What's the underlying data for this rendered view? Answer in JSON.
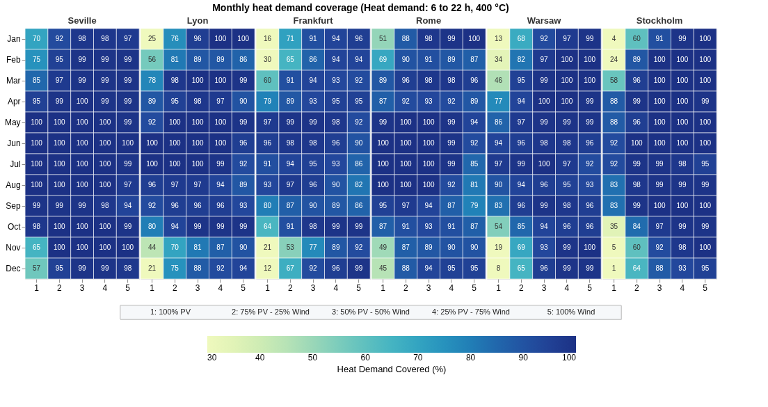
{
  "chart_data": [
    {
      "type": "other",
      "title": "Monthly heat demand coverage (Heat demand: 6 to 22 h, 400 °C)",
      "annotations": [
        "1: 100% PV",
        "2: 75% PV - 25% Wind",
        "3: 50% PV - 50% Wind",
        "4: 25% PV - 75% Wind",
        "5: 100% Wind"
      ]
    },
    {
      "type": "heatmap",
      "title": "Seville",
      "categories": [
        "1",
        "2",
        "3",
        "4",
        "5"
      ],
      "y_categories": [
        "Jan",
        "Feb",
        "Mar",
        "Apr",
        "May",
        "Jun",
        "Jul",
        "Aug",
        "Sep",
        "Oct",
        "Nov",
        "Dec"
      ],
      "data_labels": true,
      "clim": [
        30,
        100
      ],
      "cticks": [
        30,
        40,
        50,
        60,
        70,
        80,
        90,
        100
      ],
      "clabel": "Heat Demand Covered (%)",
      "cells": [
        [
          70,
          92,
          98,
          98,
          97
        ],
        [
          75,
          95,
          99,
          99,
          99
        ],
        [
          85,
          97,
          99,
          99,
          99
        ],
        [
          95,
          99,
          100,
          99,
          99
        ],
        [
          100,
          100,
          100,
          100,
          99
        ],
        [
          100,
          100,
          100,
          100,
          100
        ],
        [
          100,
          100,
          100,
          100,
          99
        ],
        [
          100,
          100,
          100,
          100,
          97
        ],
        [
          99,
          99,
          99,
          98,
          94
        ],
        [
          98,
          100,
          100,
          100,
          99
        ],
        [
          65,
          100,
          100,
          100,
          100
        ],
        [
          57,
          95,
          99,
          99,
          98
        ]
      ]
    },
    {
      "type": "heatmap",
      "title": "Lyon",
      "categories": [
        "1",
        "2",
        "3",
        "4",
        "5"
      ],
      "y_categories": [
        "Jan",
        "Feb",
        "Mar",
        "Apr",
        "May",
        "Jun",
        "Jul",
        "Aug",
        "Sep",
        "Oct",
        "Nov",
        "Dec"
      ],
      "tick_labels": "x",
      "data_labels": true,
      "cells": [
        [
          25,
          76,
          96,
          100,
          100
        ],
        [
          56,
          81,
          89,
          89,
          86
        ],
        [
          78,
          98,
          100,
          100,
          99
        ],
        [
          89,
          95,
          98,
          97,
          90
        ],
        [
          92,
          100,
          100,
          100,
          99
        ],
        [
          100,
          100,
          100,
          100,
          96
        ],
        [
          100,
          100,
          100,
          99,
          92
        ],
        [
          96,
          97,
          97,
          94,
          89
        ],
        [
          92,
          96,
          96,
          96,
          93
        ],
        [
          80,
          94,
          99,
          99,
          99
        ],
        [
          44,
          70,
          81,
          87,
          90
        ],
        [
          21,
          75,
          88,
          92,
          94
        ]
      ]
    },
    {
      "type": "heatmap",
      "title": "Frankfurt",
      "categories": [
        "1",
        "2",
        "3",
        "4",
        "5"
      ],
      "y_categories": [
        "Jan",
        "Feb",
        "Mar",
        "Apr",
        "May",
        "Jun",
        "Jul",
        "Aug",
        "Sep",
        "Oct",
        "Nov",
        "Dec"
      ],
      "tick_labels": "x",
      "data_labels": true,
      "cells": [
        [
          16,
          71,
          91,
          94,
          96
        ],
        [
          30,
          65,
          86,
          94,
          94
        ],
        [
          60,
          91,
          94,
          93,
          92
        ],
        [
          79,
          89,
          93,
          95,
          95
        ],
        [
          97,
          99,
          99,
          98,
          92
        ],
        [
          96,
          98,
          98,
          96,
          90
        ],
        [
          91,
          94,
          95,
          93,
          86
        ],
        [
          93,
          97,
          96,
          90,
          82
        ],
        [
          80,
          87,
          90,
          89,
          86
        ],
        [
          64,
          91,
          98,
          99,
          99
        ],
        [
          21,
          53,
          77,
          89,
          92
        ],
        [
          12,
          67,
          92,
          96,
          99
        ]
      ]
    },
    {
      "type": "heatmap",
      "title": "Rome",
      "categories": [
        "1",
        "2",
        "3",
        "4",
        "5"
      ],
      "y_categories": [
        "Jan",
        "Feb",
        "Mar",
        "Apr",
        "May",
        "Jun",
        "Jul",
        "Aug",
        "Sep",
        "Oct",
        "Nov",
        "Dec"
      ],
      "tick_labels": "x",
      "data_labels": true,
      "cells": [
        [
          51,
          88,
          98,
          99,
          100
        ],
        [
          69,
          90,
          91,
          89,
          87
        ],
        [
          89,
          96,
          98,
          98,
          96
        ],
        [
          87,
          92,
          93,
          92,
          89
        ],
        [
          99,
          100,
          100,
          99,
          94
        ],
        [
          100,
          100,
          100,
          99,
          92
        ],
        [
          100,
          100,
          100,
          99,
          85
        ],
        [
          100,
          100,
          100,
          92,
          81
        ],
        [
          95,
          97,
          94,
          87,
          79
        ],
        [
          87,
          91,
          93,
          91,
          87
        ],
        [
          49,
          87,
          89,
          90,
          90
        ],
        [
          45,
          88,
          94,
          95,
          95
        ]
      ]
    },
    {
      "type": "heatmap",
      "title": "Warsaw",
      "categories": [
        "1",
        "2",
        "3",
        "4",
        "5"
      ],
      "y_categories": [
        "Jan",
        "Feb",
        "Mar",
        "Apr",
        "May",
        "Jun",
        "Jul",
        "Aug",
        "Sep",
        "Oct",
        "Nov",
        "Dec"
      ],
      "tick_labels": "x",
      "data_labels": true,
      "cells": [
        [
          13,
          68,
          92,
          97,
          99
        ],
        [
          34,
          82,
          97,
          100,
          100
        ],
        [
          46,
          95,
          99,
          100,
          100
        ],
        [
          77,
          94,
          100,
          100,
          99
        ],
        [
          86,
          97,
          99,
          99,
          99
        ],
        [
          94,
          96,
          98,
          98,
          96
        ],
        [
          97,
          99,
          100,
          97,
          92
        ],
        [
          90,
          94,
          96,
          95,
          93
        ],
        [
          83,
          96,
          99,
          98,
          96
        ],
        [
          54,
          85,
          94,
          96,
          96
        ],
        [
          19,
          69,
          93,
          99,
          100
        ],
        [
          8,
          65,
          96,
          99,
          99
        ]
      ]
    },
    {
      "type": "heatmap",
      "title": "Stockholm",
      "categories": [
        "1",
        "2",
        "3",
        "4",
        "5"
      ],
      "y_categories": [
        "Jan",
        "Feb",
        "Mar",
        "Apr",
        "May",
        "Jun",
        "Jul",
        "Aug",
        "Sep",
        "Oct",
        "Nov",
        "Dec"
      ],
      "tick_labels": "x",
      "data_labels": true,
      "cells": [
        [
          4,
          60,
          91,
          99,
          100
        ],
        [
          24,
          89,
          100,
          100,
          100
        ],
        [
          58,
          96,
          100,
          100,
          100
        ],
        [
          88,
          99,
          100,
          100,
          99
        ],
        [
          88,
          96,
          100,
          100,
          100
        ],
        [
          92,
          100,
          100,
          100,
          100
        ],
        [
          92,
          99,
          99,
          98,
          95
        ],
        [
          83,
          98,
          99,
          99,
          99
        ],
        [
          83,
          99,
          100,
          100,
          100
        ],
        [
          35,
          84,
          97,
          99,
          99
        ],
        [
          5,
          60,
          92,
          98,
          100
        ],
        [
          1,
          64,
          88,
          93,
          95
        ]
      ]
    }
  ]
}
